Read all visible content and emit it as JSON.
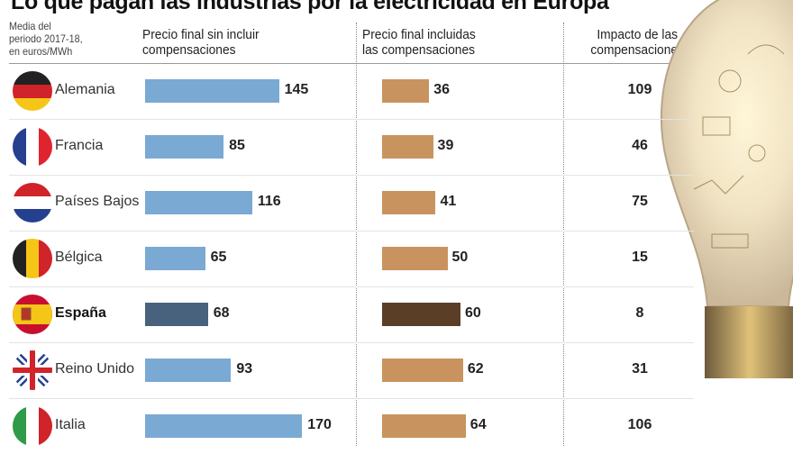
{
  "chart_data": {
    "type": "bar",
    "title": "Lo que pagan las industrias por la electricidad en Europa",
    "subtitle": "Media del periodo 2017-18, en euros/MWh",
    "categories": [
      "Alemania",
      "Francia",
      "Países Bajos",
      "Bélgica",
      "España",
      "Reino Unido",
      "Italia"
    ],
    "highlight": "España",
    "series": [
      {
        "name": "Precio final sin incluir compensaciones",
        "values": [
          145,
          85,
          116,
          65,
          68,
          93,
          170
        ],
        "color": "#7aa9d3",
        "highlight_color": "#48627d"
      },
      {
        "name": "Precio final incluidas las compensaciones",
        "values": [
          36,
          39,
          41,
          50,
          60,
          62,
          64
        ],
        "color": "#c9935f",
        "highlight_color": "#5a3f26"
      },
      {
        "name": "Impacto de las compensaciones",
        "values": [
          109,
          46,
          75,
          15,
          8,
          31,
          106
        ]
      }
    ],
    "flags": [
      "germany-flag",
      "france-flag",
      "netherlands-flag",
      "belgium-flag",
      "spain-flag",
      "uk-flag",
      "italy-flag"
    ]
  },
  "headers": {
    "sub": [
      "Media del",
      "periodo 2017-18,",
      "en euros/MWh"
    ],
    "col1": [
      "Precio final sin incluir",
      "compensaciones"
    ],
    "col2": [
      "Precio final incluidas",
      "las compensaciones"
    ],
    "col3": [
      "Impacto de las",
      "compensaciones"
    ]
  }
}
